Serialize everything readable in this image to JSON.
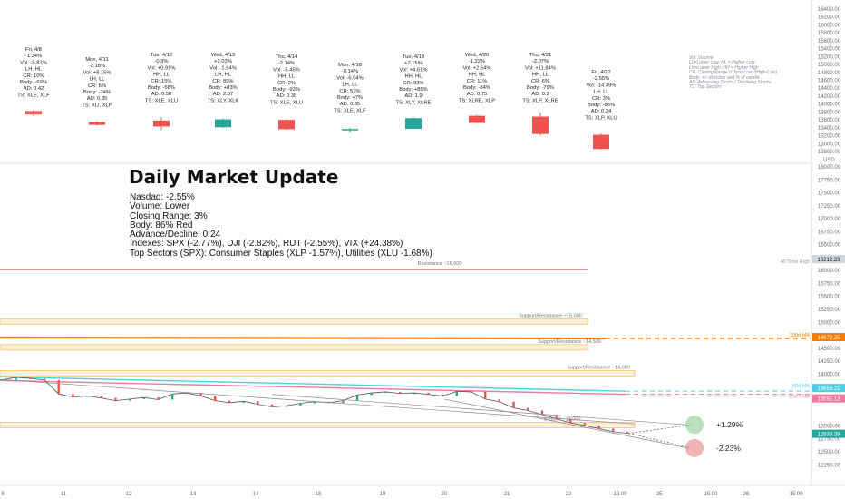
{
  "colors": {
    "up": "#26a69a",
    "down": "#ef5350",
    "resistance": "#e57373",
    "zone": "#f6c26b",
    "ma200": "#f57c00",
    "ma50": "#4dd0e1",
    "ema21": "#ef7aa0",
    "axis_text": "#6b6b6b",
    "grid": "#f0f3fa",
    "support_tag": "#26a69a",
    "ath_tag": "#d1d4dc",
    "target_up": "#a5d6a7",
    "target_down": "#ef9a9a"
  },
  "headline": "Daily Market Update",
  "summary": [
    "Nasdaq: -2.55%",
    "Volume: Lower",
    "Closing Range: 3%",
    "Body: 86% Red",
    "Advance/Decline: 0.24",
    "Indexes: SPX (-2.77%), DJI (-2.82%), RUT (-2.55%), VIX (+24.38%)",
    "Top Sectors (SPX): Consumer Staples (XLP -1.57%), Utilities (XLU -1.68%)"
  ],
  "legend_note": [
    "Vol: Volume",
    "LL=Lower Low, HL = Higher Low",
    "LH=Lower High, HH = Higher High",
    "CR: Closing Range (Close-Low)/(High-Low)",
    "Body: +/- direction and % of candle",
    "AD: Advancing Stocks / Declining Stocks",
    "TS: Top Sectors"
  ],
  "chart_data": [
    {
      "type": "candlestick",
      "panel": "daily candle summaries",
      "y_axis_ticks": [
        "16400.00",
        "16200.00",
        "16000.00",
        "15800.00",
        "15600.00",
        "15400.00",
        "15200.00",
        "15000.00",
        "14800.00",
        "14600.00",
        "14400.00",
        "14200.00",
        "14000.00",
        "13800.00",
        "13600.00",
        "13400.00",
        "13200.00",
        "13000.00",
        "12800.00"
      ],
      "days": [
        {
          "label": [
            "Fri, 4/8",
            "-1.34%",
            "Vol: -5.81%",
            "LH, HL",
            "CR: 10%",
            "Body: -69%",
            "AD: 0.42",
            "TS: XLE, XLF"
          ],
          "open": 13800,
          "high": 13830,
          "low": 13680,
          "close": 13715,
          "dir": "down"
        },
        {
          "label": [
            "Mon, 4/11",
            "-2.18%",
            "Vol: +8.15%",
            "LH, LL",
            "CR: 6%",
            "Body: -74%",
            "AD: 0.35",
            "TS: XLI, XLP"
          ],
          "open": 13520,
          "high": 13545,
          "low": 13430,
          "close": 13450,
          "dir": "down"
        },
        {
          "label": [
            "Tue, 4/12",
            "-0.3%",
            "Vol: +0.91%",
            "HH, LL",
            "CR: 15%",
            "Body: -58%",
            "AD: 0.58",
            "TS: XLE, XLU"
          ],
          "open": 13560,
          "high": 13640,
          "low": 13320,
          "close": 13410,
          "dir": "down"
        },
        {
          "label": [
            "Wed, 4/13",
            "+2.03%",
            "Vol: -1.64%",
            "LH, HL",
            "CR: 89%",
            "Body: +83%",
            "AD: 2.07",
            "TS: XLY, XLK"
          ],
          "open": 13390,
          "high": 13615,
          "low": 13370,
          "close": 13590,
          "dir": "up"
        },
        {
          "label": [
            "Thu, 4/14",
            "-2.14%",
            "Vol: -5.45%",
            "HH, LL",
            "CR: 2%",
            "Body: -93%",
            "AD: 0.35",
            "TS: XLE, XLU"
          ],
          "open": 13575,
          "high": 13595,
          "low": 13330,
          "close": 13340,
          "dir": "down"
        },
        {
          "label": [
            "Mon, 4/18",
            "-0.14%",
            "Vol: -6.04%",
            "LH, LL",
            "CR: 57%",
            "Body: +7%",
            "AD: 0.35",
            "TS: XLE, XLF"
          ],
          "open": 13330,
          "high": 13380,
          "low": 13250,
          "close": 13345,
          "dir": "up"
        },
        {
          "label": [
            "Tue, 4/19",
            "+2.15%",
            "Vol: +4.61%",
            "HH, HL",
            "CR: 93%",
            "Body: +85%",
            "AD: 1.9",
            "TS: XLY, XLRE"
          ],
          "open": 13350,
          "high": 13640,
          "low": 13340,
          "close": 13620,
          "dir": "up"
        },
        {
          "label": [
            "Wed, 4/20",
            "-1.22%",
            "Vol: +2.54%",
            "HH, HL",
            "CR: 11%",
            "Body: -84%",
            "AD: 0.75",
            "TS: XLRE, XLP"
          ],
          "open": 13680,
          "high": 13700,
          "low": 13480,
          "close": 13500,
          "dir": "down"
        },
        {
          "label": [
            "Thu, 4/21",
            "-2.07%",
            "Vol: +11.84%",
            "HH, LL",
            "CR: 6%",
            "Body: -79%",
            "AD: 0.2",
            "TS: XLP, XLRE"
          ],
          "open": 13660,
          "high": 13770,
          "low": 13180,
          "close": 13220,
          "dir": "down"
        },
        {
          "label": [
            "Fri, 4/22",
            "-2.55%",
            "Vol: -14.49%",
            "LH, LL",
            "CR: 3%",
            "Body: -86%",
            "AD: 0.24",
            "TS: XLP, XLU"
          ],
          "open": 13200,
          "high": 13230,
          "low": 12830,
          "close": 12840,
          "dir": "down"
        }
      ]
    },
    {
      "type": "line",
      "panel": "Nasdaq daily price",
      "unit": "USD",
      "y_axis_ticks": [
        "18000.00",
        "17750.00",
        "17500.00",
        "17250.00",
        "17000.00",
        "16750.00",
        "16500.00",
        "16000.00",
        "15750.00",
        "15500.00",
        "15250.00",
        "15000.00",
        "14750.00",
        "14500.00",
        "14250.00",
        "14000.00",
        "13750.00",
        "13500.00",
        "13000.00",
        "12750.00",
        "12500.00",
        "12250.00"
      ],
      "x_axis_ticks": [
        "8",
        "11",
        "12",
        "13",
        "14",
        "18",
        "19",
        "20",
        "21",
        "22",
        "15:00",
        "25",
        "15:00",
        "26",
        "15:00"
      ],
      "levels": [
        {
          "label": "Resistance ~16,000",
          "value": 16000,
          "kind": "resistance"
        },
        {
          "label": "Support/Resistance ~15,000",
          "value": 15000,
          "kind": "zone"
        },
        {
          "label": "Support/Resistance ~14,500",
          "value": 14500,
          "kind": "zone"
        },
        {
          "label": "Support/Resistance ~14,000",
          "value": 14000,
          "kind": "zone"
        },
        {
          "label": "Support ~13,000",
          "value": 13000,
          "kind": "zone"
        }
      ],
      "moving_averages": [
        {
          "name": "200d MA",
          "value": 14672.25
        },
        {
          "name": "50d MA",
          "value": 13653.21
        },
        {
          "name": "21d EMA",
          "value": 13592.13
        }
      ],
      "tags": [
        {
          "text": "16212.23",
          "label": "All Time High",
          "value": 16212.23
        },
        {
          "text": "12839.39",
          "value": 12839.39
        }
      ],
      "targets": [
        {
          "label": "+1.29%",
          "value": 13005
        },
        {
          "label": "-2.23%",
          "value": 12555
        }
      ],
      "series_close": [
        13870,
        13920,
        13900,
        13870,
        13600,
        13540,
        13560,
        13520,
        13470,
        13500,
        13530,
        13490,
        13600,
        13620,
        13560,
        13470,
        13430,
        13460,
        13400,
        13350,
        13370,
        13420,
        13450,
        13430,
        13470,
        13580,
        13620,
        13640,
        13610,
        13620,
        13590,
        13560,
        13650,
        13640,
        13500,
        13450,
        13330,
        13280,
        13200,
        13120,
        13040,
        12990,
        12930,
        12870,
        12840
      ],
      "last": 12839.39
    }
  ]
}
